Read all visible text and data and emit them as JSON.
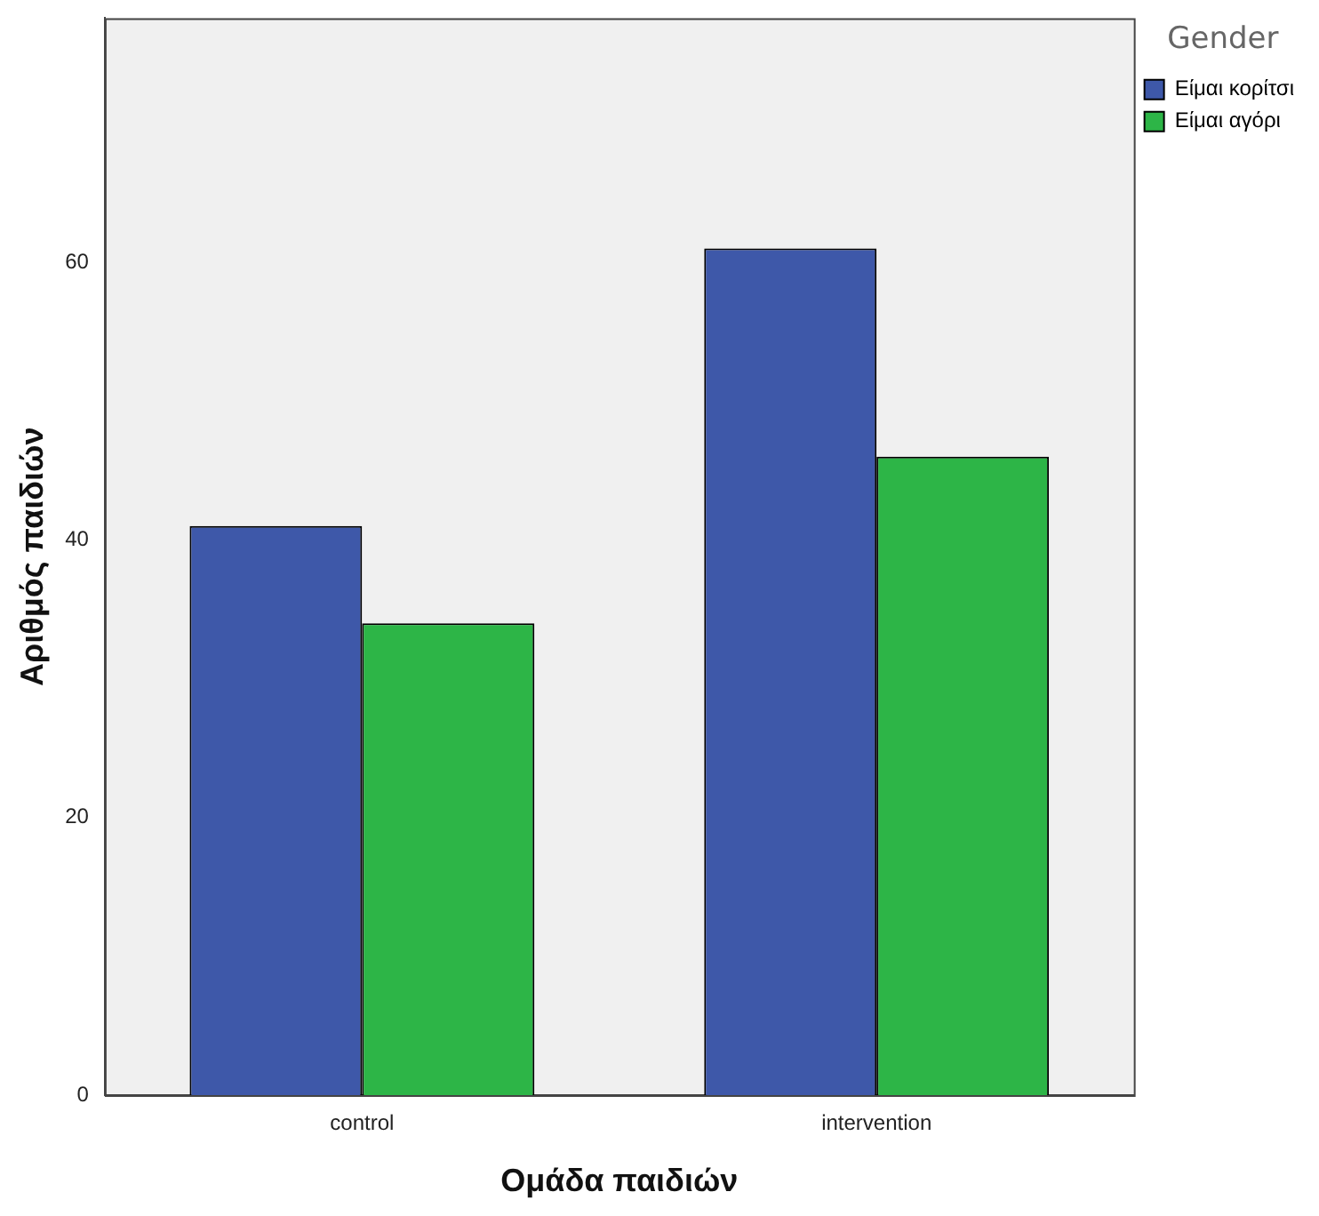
{
  "chart_data": {
    "type": "bar",
    "xlabel": "Ομάδα παιδιών",
    "ylabel": "Αριθμός παιδιών",
    "legend_title": "Gender",
    "legend": "top right",
    "categories": [
      "control",
      "intervention"
    ],
    "series": [
      {
        "name": "Είμαι κορίτσι",
        "color": "#3e58a9",
        "values": [
          41,
          61
        ]
      },
      {
        "name": "Είμαι αγόρι",
        "color": "#2db547",
        "values": [
          34,
          46
        ]
      }
    ],
    "ylim": [
      0,
      77.6
    ],
    "yticks": [
      0,
      20,
      40,
      60
    ],
    "grid": false
  }
}
